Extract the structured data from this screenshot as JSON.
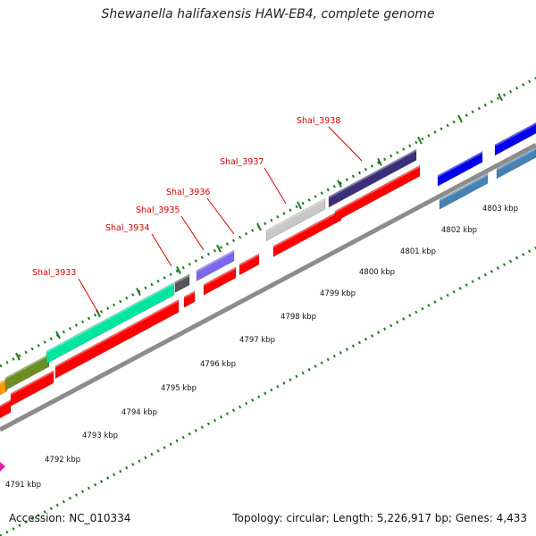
{
  "title": "Shewanella halifaxensis HAW-EB4, complete genome",
  "footer": {
    "accession": "Accession: NC_010334",
    "topology": "Topology: circular; Length: 5,226,917 bp; Genes: 4,433"
  },
  "colors": {
    "backbone": "#8c8c8c",
    "tick_green": "#1f7a1f",
    "label_red": "#d40000",
    "reverse_cds": "#ff0000"
  },
  "scale_labels": [
    "4791 kbp",
    "4792 kbp",
    "4793 kbp",
    "4794 kbp",
    "4795 kbp",
    "4796 kbp",
    "4797 kbp",
    "4798 kbp",
    "4799 kbp",
    "4800 kbp",
    "4801 kbp",
    "4802 kbp",
    "4803 kbp"
  ],
  "gene_labels": [
    "Shal_3933",
    "Shal_3934",
    "Shal_3935",
    "Shal_3936",
    "Shal_3937",
    "Shal_3938"
  ]
}
